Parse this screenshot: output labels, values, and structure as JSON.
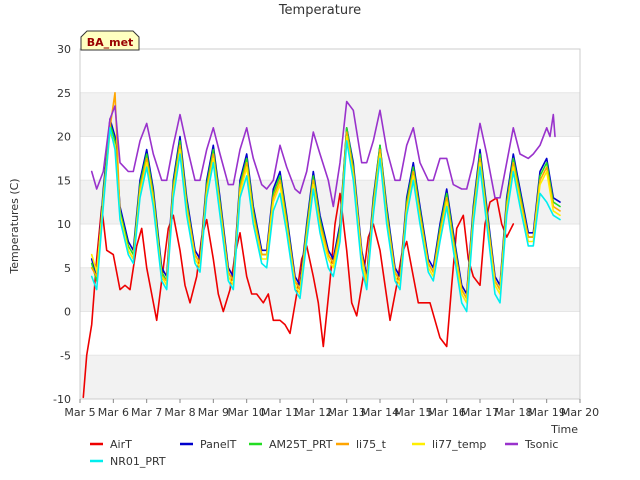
{
  "chart_data": {
    "type": "line",
    "title": "Temperature",
    "xlabel": "Time",
    "ylabel": "Temperatures (C)",
    "badge": "BA_met",
    "xlim": [
      5,
      20
    ],
    "ylim": [
      -10,
      30
    ],
    "x_tick_values": [
      5,
      6,
      7,
      8,
      9,
      10,
      11,
      12,
      13,
      14,
      15,
      16,
      17,
      18,
      19,
      20
    ],
    "x_tick_labels": [
      "Mar 5",
      "Mar 6",
      "Mar 7",
      "Mar 8",
      "Mar 9",
      "Mar 10",
      "Mar 11",
      "Mar 12",
      "Mar 13",
      "Mar 14",
      "Mar 15",
      "Mar 16",
      "Mar 17",
      "Mar 18",
      "Mar 19",
      "Mar 20"
    ],
    "y_ticks": [
      -10,
      -5,
      0,
      5,
      10,
      15,
      20,
      25,
      30
    ],
    "grid": true,
    "legend_position": "bottom",
    "series": [
      {
        "name": "AirT",
        "color": "#ee0000",
        "x": [
          5.1,
          5.2,
          5.35,
          5.5,
          5.65,
          5.8,
          6.0,
          6.2,
          6.35,
          6.5,
          6.7,
          6.85,
          7.0,
          7.15,
          7.3,
          7.5,
          7.65,
          7.8,
          8.0,
          8.15,
          8.3,
          8.5,
          8.65,
          8.8,
          9.0,
          9.15,
          9.3,
          9.5,
          9.65,
          9.8,
          10.0,
          10.15,
          10.3,
          10.5,
          10.65,
          10.8,
          11.0,
          11.15,
          11.3,
          11.5,
          11.65,
          11.8,
          12.0,
          12.15,
          12.3,
          12.5,
          12.65,
          12.8,
          13.0,
          13.15,
          13.3,
          13.5,
          13.65,
          13.8,
          14.0,
          14.15,
          14.3,
          14.5,
          14.65,
          14.8,
          15.0,
          15.15,
          15.3,
          15.5,
          15.65,
          15.8,
          16.0,
          16.15,
          16.3,
          16.5,
          16.65,
          16.8,
          17.0,
          17.15,
          17.3,
          17.5,
          17.65,
          17.8,
          18.0
        ],
        "y": [
          -9.8,
          -5,
          -1.5,
          6,
          12,
          7,
          6.5,
          2.5,
          3,
          2.5,
          7.5,
          9.5,
          5,
          2,
          -1,
          5,
          9.5,
          11,
          7,
          3,
          1,
          4,
          8.5,
          10.5,
          6,
          2,
          0,
          2.5,
          6.5,
          9,
          4,
          2,
          2,
          1,
          2,
          -1,
          -1,
          -1.5,
          -2.5,
          2,
          6,
          7.5,
          4,
          1,
          -4,
          3.5,
          10,
          13.5,
          7,
          1,
          -0.5,
          4,
          8.5,
          10,
          7,
          3,
          -1,
          3,
          6.5,
          8,
          4,
          1,
          1,
          1,
          -1,
          -3,
          -4,
          3,
          9.5,
          11,
          6,
          4,
          3,
          10,
          12.5,
          13,
          10,
          8.5,
          10
        ]
      },
      {
        "name": "PanelT",
        "color": "#0000cc",
        "x": [
          5.35,
          5.5,
          5.7,
          5.9,
          6.05,
          6.2,
          6.45,
          6.6,
          6.8,
          7.0,
          7.2,
          7.45,
          7.6,
          7.8,
          8.0,
          8.2,
          8.45,
          8.6,
          8.8,
          9.0,
          9.2,
          9.45,
          9.6,
          9.8,
          10.0,
          10.2,
          10.45,
          10.6,
          10.8,
          11.0,
          11.2,
          11.45,
          11.6,
          11.8,
          12.0,
          12.2,
          12.45,
          12.6,
          12.8,
          13.0,
          13.2,
          13.45,
          13.6,
          13.8,
          14.0,
          14.2,
          14.45,
          14.6,
          14.8,
          15.0,
          15.2,
          15.45,
          15.6,
          15.8,
          16.0,
          16.2,
          16.45,
          16.6,
          16.8,
          17.0,
          17.2,
          17.45,
          17.6,
          17.8,
          18.0,
          18.2,
          18.45,
          18.6,
          18.8,
          19.0,
          19.2,
          19.4
        ],
        "y": [
          6,
          4,
          14,
          22,
          20,
          12,
          8,
          7,
          15,
          18.5,
          14,
          5,
          4,
          15,
          20,
          13,
          7,
          6,
          15,
          19,
          13,
          5,
          4,
          15,
          18,
          12,
          7,
          7,
          14,
          16,
          11,
          4,
          3,
          10,
          16,
          11,
          7,
          6,
          10,
          21,
          17,
          7,
          4,
          13,
          19,
          12,
          5,
          4,
          13,
          17,
          12,
          6,
          5,
          10,
          14,
          9,
          3,
          2,
          12,
          18.5,
          12,
          4,
          3,
          13,
          18,
          14,
          9,
          9,
          16,
          17.5,
          13,
          12.5
        ]
      },
      {
        "name": "AM25T_PRT",
        "color": "#22dd22",
        "x": [
          5.35,
          5.5,
          5.7,
          5.9,
          6.05,
          6.2,
          6.45,
          6.6,
          6.8,
          7.0,
          7.2,
          7.45,
          7.6,
          7.8,
          8.0,
          8.2,
          8.45,
          8.6,
          8.8,
          9.0,
          9.2,
          9.45,
          9.6,
          9.8,
          10.0,
          10.2,
          10.45,
          10.6,
          10.8,
          11.0,
          11.2,
          11.45,
          11.6,
          11.8,
          12.0,
          12.2,
          12.45,
          12.6,
          12.8,
          13.0,
          13.2,
          13.45,
          13.6,
          13.8,
          14.0,
          14.2,
          14.45,
          14.6,
          14.8,
          15.0,
          15.2,
          15.45,
          15.6,
          15.8,
          16.0,
          16.2,
          16.45,
          16.6,
          16.8,
          17.0,
          17.2,
          17.45,
          17.6,
          17.8,
          18.0,
          18.2,
          18.45,
          18.6,
          18.8,
          19.0,
          19.2,
          19.4
        ],
        "y": [
          5.5,
          3.5,
          13.5,
          21.5,
          19.5,
          11.5,
          7.5,
          6.5,
          14.5,
          18,
          13.5,
          4.5,
          3.5,
          14.5,
          19.5,
          12.5,
          6.5,
          5.5,
          14.5,
          18.5,
          12.5,
          4.5,
          3.5,
          14.5,
          17.5,
          11.5,
          6.5,
          6.5,
          13.5,
          15.5,
          10.5,
          3.5,
          2.5,
          9.5,
          15.5,
          10.5,
          6.5,
          5.5,
          9.5,
          21,
          16.5,
          6.5,
          3.5,
          12.5,
          19,
          11.5,
          4.5,
          3.5,
          12.5,
          16.5,
          11.5,
          5.5,
          4.5,
          9.5,
          13.5,
          8.5,
          2.5,
          1.5,
          11.5,
          18,
          11.5,
          3.5,
          2.5,
          12.5,
          17.5,
          13.5,
          8.5,
          8.5,
          15.5,
          17,
          12.5,
          12
        ]
      },
      {
        "name": "li75_t",
        "color": "#ffa500",
        "x": [
          5.35,
          5.5,
          5.7,
          5.9,
          6.05,
          6.2,
          6.45,
          6.6,
          6.8,
          7.0,
          7.2,
          7.45,
          7.6,
          7.8,
          8.0,
          8.2,
          8.45,
          8.6,
          8.8,
          9.0,
          9.2,
          9.45,
          9.6,
          9.8,
          10.0,
          10.2,
          10.45,
          10.6,
          10.8,
          11.0,
          11.2,
          11.45,
          11.6,
          11.8,
          12.0,
          12.2,
          12.45,
          12.6,
          12.8,
          13.0,
          13.2,
          13.45,
          13.6,
          13.8,
          14.0,
          14.2,
          14.45,
          14.6,
          14.8,
          15.0,
          15.2,
          15.45,
          15.6,
          15.8,
          16.0,
          16.2,
          16.45,
          16.6,
          16.8,
          17.0,
          17.2,
          17.45,
          17.6,
          17.8,
          18.0,
          18.2,
          18.45,
          18.6,
          18.8,
          19.0,
          19.2,
          19.4
        ],
        "y": [
          5,
          4,
          13,
          21,
          25,
          11,
          7,
          6,
          14,
          17.5,
          13,
          4,
          3.5,
          14,
          19,
          12,
          6.5,
          5.5,
          14,
          18,
          12,
          4.5,
          3.5,
          14,
          17,
          11,
          6.5,
          6.5,
          13,
          15,
          10,
          3.5,
          2.5,
          9,
          15,
          10,
          6.5,
          5.5,
          9,
          20.5,
          16,
          6.5,
          3.5,
          12,
          18.5,
          11,
          4.5,
          3.5,
          12,
          16,
          11,
          5.5,
          4.5,
          9,
          13,
          8,
          2.5,
          1.5,
          11,
          17.5,
          11,
          3.5,
          2.5,
          12,
          17,
          13,
          8.5,
          8.5,
          15,
          16.5,
          12,
          11.5
        ]
      },
      {
        "name": "li77_temp",
        "color": "#ffee00",
        "x": [
          5.35,
          5.5,
          5.7,
          5.9,
          6.05,
          6.2,
          6.45,
          6.6,
          6.8,
          7.0,
          7.2,
          7.45,
          7.6,
          7.8,
          8.0,
          8.2,
          8.45,
          8.6,
          8.8,
          9.0,
          9.2,
          9.45,
          9.6,
          9.8,
          10.0,
          10.2,
          10.45,
          10.6,
          10.8,
          11.0,
          11.2,
          11.45,
          11.6,
          11.8,
          12.0,
          12.2,
          12.45,
          12.6,
          12.8,
          13.0,
          13.2,
          13.45,
          13.6,
          13.8,
          14.0,
          14.2,
          14.45,
          14.6,
          14.8,
          15.0,
          15.2,
          15.45,
          15.6,
          15.8,
          16.0,
          16.2,
          16.45,
          16.6,
          16.8,
          17.0,
          17.2,
          17.45,
          17.6,
          17.8,
          18.0,
          18.2,
          18.45,
          18.6,
          18.8,
          19.0,
          19.2,
          19.4
        ],
        "y": [
          6.5,
          4.5,
          12.5,
          20.5,
          19,
          11,
          7,
          6,
          13.5,
          17,
          12.5,
          4,
          3,
          13.5,
          18.5,
          11.5,
          6,
          5,
          13.5,
          17.5,
          11.5,
          4,
          3,
          13.5,
          16.5,
          10.5,
          6,
          6,
          12.5,
          14.5,
          9.5,
          3,
          2,
          8.5,
          14.5,
          9.5,
          6,
          5,
          8.5,
          20,
          15.5,
          6,
          3,
          11.5,
          18,
          10.5,
          4,
          3,
          11.5,
          15.5,
          10.5,
          5,
          4,
          8.5,
          12.5,
          7.5,
          2,
          1,
          10.5,
          17,
          10.5,
          3,
          2,
          11.5,
          16.5,
          12.5,
          8,
          8,
          14.5,
          16,
          11.5,
          11
        ]
      },
      {
        "name": "Tsonic",
        "color": "#9932cc",
        "x": [
          5.35,
          5.5,
          5.7,
          5.9,
          6.05,
          6.2,
          6.45,
          6.6,
          6.8,
          7.0,
          7.2,
          7.45,
          7.6,
          7.8,
          8.0,
          8.2,
          8.45,
          8.6,
          8.8,
          9.0,
          9.2,
          9.45,
          9.6,
          9.8,
          10.0,
          10.2,
          10.45,
          10.6,
          10.8,
          11.0,
          11.2,
          11.45,
          11.6,
          11.8,
          12.0,
          12.2,
          12.45,
          12.6,
          12.8,
          13.0,
          13.2,
          13.45,
          13.6,
          13.8,
          14.0,
          14.2,
          14.45,
          14.6,
          14.8,
          15.0,
          15.2,
          15.45,
          15.6,
          15.8,
          16.0,
          16.2,
          16.45,
          16.6,
          16.8,
          17.0,
          17.2,
          17.45,
          17.6,
          17.8,
          18.0,
          18.2,
          18.45,
          18.6,
          18.8,
          19.0,
          19.1,
          19.2,
          19.25
        ],
        "y": [
          16,
          14,
          16,
          22,
          23.5,
          17,
          16,
          16,
          19.5,
          21.5,
          18,
          15,
          15,
          19,
          22.5,
          19,
          15,
          15,
          18.5,
          21,
          18,
          14.5,
          14.5,
          18.5,
          21,
          17.5,
          14.5,
          14,
          15,
          19,
          16.5,
          14,
          13.5,
          16,
          20.5,
          18,
          15,
          12,
          17,
          24,
          23,
          17,
          17,
          19.5,
          23,
          18.5,
          15,
          15,
          19,
          21,
          17,
          15,
          15,
          17.5,
          17.5,
          14.5,
          14,
          14,
          17,
          21.5,
          18,
          13,
          13,
          17,
          21,
          18,
          17.5,
          18,
          19,
          21,
          20,
          22.5,
          20
        ]
      },
      {
        "name": "NR01_PRT",
        "color": "#00eeee",
        "x": [
          5.35,
          5.5,
          5.7,
          5.9,
          6.05,
          6.2,
          6.45,
          6.6,
          6.8,
          7.0,
          7.2,
          7.45,
          7.6,
          7.8,
          8.0,
          8.2,
          8.45,
          8.6,
          8.8,
          9.0,
          9.2,
          9.45,
          9.6,
          9.8,
          10.0,
          10.2,
          10.45,
          10.6,
          10.8,
          11.0,
          11.2,
          11.45,
          11.6,
          11.8,
          12.0,
          12.2,
          12.45,
          12.6,
          12.8,
          13.0,
          13.2,
          13.45,
          13.6,
          13.8,
          14.0,
          14.2,
          14.45,
          14.6,
          14.8,
          15.0,
          15.2,
          15.45,
          15.6,
          15.8,
          16.0,
          16.2,
          16.45,
          16.6,
          16.8,
          17.0,
          17.2,
          17.45,
          17.6,
          17.8,
          18.0,
          18.2,
          18.45,
          18.6,
          18.8,
          19.0,
          19.2,
          19.4
        ],
        "y": [
          4,
          2.5,
          12,
          21,
          18.5,
          10.5,
          6.5,
          5.5,
          13,
          16.5,
          12,
          3.5,
          2.5,
          13,
          18,
          11,
          5.5,
          4.5,
          13,
          17,
          11,
          3.5,
          2.5,
          13,
          15.5,
          10,
          5.5,
          5,
          11.5,
          13.5,
          9,
          2.5,
          1.5,
          8,
          14,
          9,
          5,
          4,
          8,
          19.5,
          15,
          5,
          2.5,
          11,
          17.5,
          10,
          3.5,
          2.5,
          11,
          15,
          10,
          4.5,
          3.5,
          8,
          12,
          7,
          1,
          0,
          10,
          16.5,
          10,
          2,
          1,
          11,
          16,
          12,
          7.5,
          7.5,
          13.5,
          12.5,
          11,
          10.5
        ]
      }
    ]
  }
}
